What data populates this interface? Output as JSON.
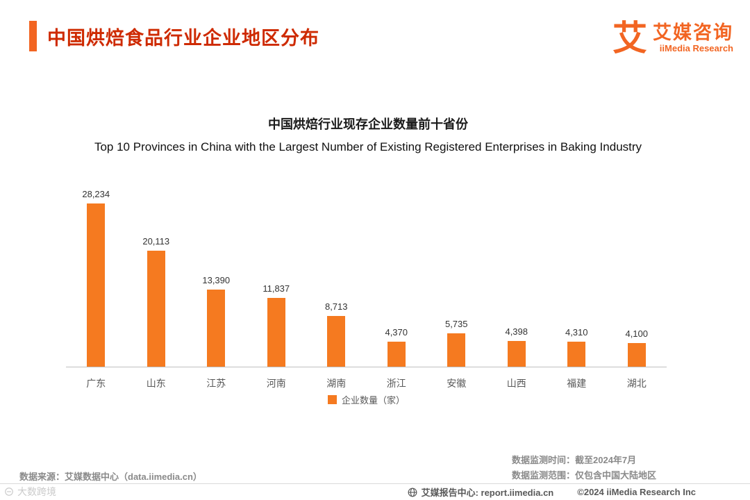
{
  "page": {
    "title": "中国烘焙食品行业企业地区分布",
    "logo": {
      "mark": "艾",
      "name_cn": "艾媒咨询",
      "name_en": "iiMedia Research"
    }
  },
  "chart_data": {
    "type": "bar",
    "title": "中国烘焙行业现存企业数量前十省份",
    "subtitle": "Top 10 Provinces in China with the Largest Number of Existing Registered Enterprises in Baking Industry",
    "categories": [
      "广东",
      "山东",
      "江苏",
      "河南",
      "湖南",
      "浙江",
      "安徽",
      "山西",
      "福建",
      "湖北"
    ],
    "values": [
      28234,
      20113,
      13390,
      11837,
      8713,
      4370,
      5735,
      4398,
      4310,
      4100
    ],
    "value_labels": [
      "28,234",
      "20,113",
      "13,390",
      "11,837",
      "8,713",
      "4,370",
      "5,735",
      "4,398",
      "4,310",
      "4,100"
    ],
    "legend": [
      "企业数量（家）"
    ],
    "legend_position": "bottom",
    "xlabel": "",
    "ylabel": "",
    "ylim": [
      0,
      30000
    ],
    "grid": false,
    "bar_color": "#F57A20"
  },
  "footer": {
    "source": "数据来源：艾媒数据中心（data.iimedia.cn）",
    "monitor_time": "数据监测时间：截至2024年7月",
    "monitor_scope": "数据监测范围：仅包含中国大陆地区",
    "report_center": "艾媒报告中心:  report.iimedia.cn",
    "copyright": "©2024 iiMedia Research  Inc"
  },
  "watermark": "大数跨境",
  "colors": {
    "accent": "#F26522",
    "heading": "#CE2A00",
    "bar": "#F57A20"
  }
}
